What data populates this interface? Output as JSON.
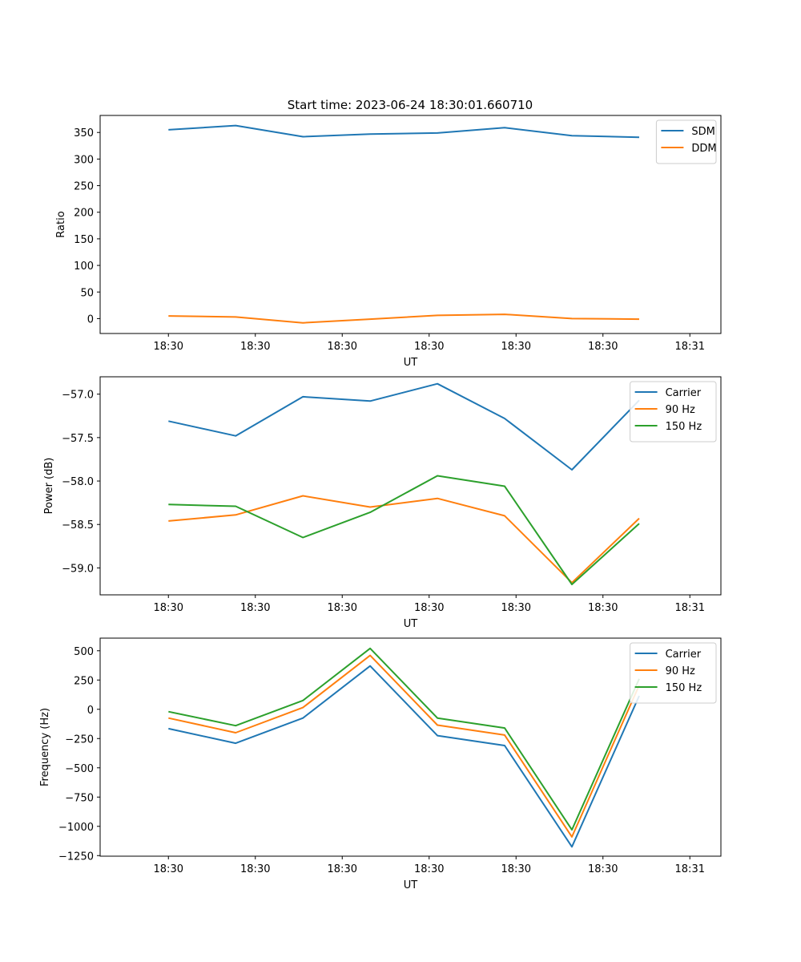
{
  "title": "Start time: 2023-06-24 18:30:01.660710",
  "chart_data": [
    {
      "type": "line",
      "xlabel": "UT",
      "ylabel": "Ratio",
      "x_tick_labels": [
        "18:30",
        "18:30",
        "18:30",
        "18:30",
        "18:30",
        "18:30",
        "18:31"
      ],
      "xlim": [
        -0.66,
        5.34
      ],
      "x": [
        0,
        0.65,
        1.3,
        1.95,
        2.6,
        3.25,
        3.9,
        4.55
      ],
      "ylim": [
        -28,
        382
      ],
      "y_ticks": [
        0,
        50,
        100,
        150,
        200,
        250,
        300,
        350
      ],
      "legend": "top-right",
      "series": [
        {
          "name": "SDM",
          "color": "#1f77b4",
          "values": [
            355,
            363,
            342,
            347,
            349,
            359,
            344,
            341
          ]
        },
        {
          "name": "DDM",
          "color": "#ff7f0e",
          "values": [
            5,
            3,
            -8,
            -1,
            6,
            8,
            0,
            -1
          ]
        }
      ]
    },
    {
      "type": "line",
      "xlabel": "UT",
      "ylabel": "Power (dB)",
      "x_tick_labels": [
        "18:30",
        "18:30",
        "18:30",
        "18:30",
        "18:30",
        "18:30",
        "18:31"
      ],
      "xlim": [
        -0.66,
        5.34
      ],
      "x": [
        0,
        0.65,
        1.3,
        1.95,
        2.6,
        3.25,
        3.9,
        4.55
      ],
      "ylim": [
        -59.31,
        -56.8
      ],
      "y_ticks": [
        -59.0,
        -58.5,
        -58.0,
        -57.5,
        -57.0
      ],
      "y_tick_labels": [
        "−59.0",
        "−58.5",
        "−58.0",
        "−57.5",
        "−57.0"
      ],
      "legend": "top-right",
      "series": [
        {
          "name": "Carrier",
          "color": "#1f77b4",
          "values": [
            -57.31,
            -57.48,
            -57.03,
            -57.08,
            -56.88,
            -57.28,
            -57.87,
            -57.07
          ]
        },
        {
          "name": "90 Hz",
          "color": "#ff7f0e",
          "values": [
            -58.46,
            -58.39,
            -58.17,
            -58.3,
            -58.2,
            -58.4,
            -59.17,
            -58.43
          ]
        },
        {
          "name": "150 Hz",
          "color": "#2ca02c",
          "values": [
            -58.27,
            -58.29,
            -58.65,
            -58.36,
            -57.94,
            -58.06,
            -59.19,
            -58.49
          ]
        }
      ]
    },
    {
      "type": "line",
      "xlabel": "UT",
      "ylabel": "Frequency (Hz)",
      "x_tick_labels": [
        "18:30",
        "18:30",
        "18:30",
        "18:30",
        "18:30",
        "18:30",
        "18:31"
      ],
      "xlim": [
        -0.66,
        5.34
      ],
      "x": [
        0,
        0.65,
        1.3,
        1.95,
        2.6,
        3.25,
        3.9,
        4.55
      ],
      "ylim": [
        -1255,
        608
      ],
      "y_ticks": [
        -1250,
        -1000,
        -750,
        -500,
        -250,
        0,
        250,
        500
      ],
      "y_tick_labels": [
        "−1250",
        "−1000",
        "−750",
        "−500",
        "−250",
        "0",
        "250",
        "500"
      ],
      "legend": "top-right",
      "series": [
        {
          "name": "Carrier",
          "color": "#1f77b4",
          "values": [
            -165,
            -290,
            -75,
            370,
            -225,
            -310,
            -1175,
            115
          ]
        },
        {
          "name": "90 Hz",
          "color": "#ff7f0e",
          "values": [
            -75,
            -200,
            15,
            460,
            -135,
            -220,
            -1090,
            205
          ]
        },
        {
          "name": "150 Hz",
          "color": "#2ca02c",
          "values": [
            -20,
            -140,
            75,
            520,
            -75,
            -160,
            -1030,
            260
          ]
        }
      ]
    }
  ]
}
